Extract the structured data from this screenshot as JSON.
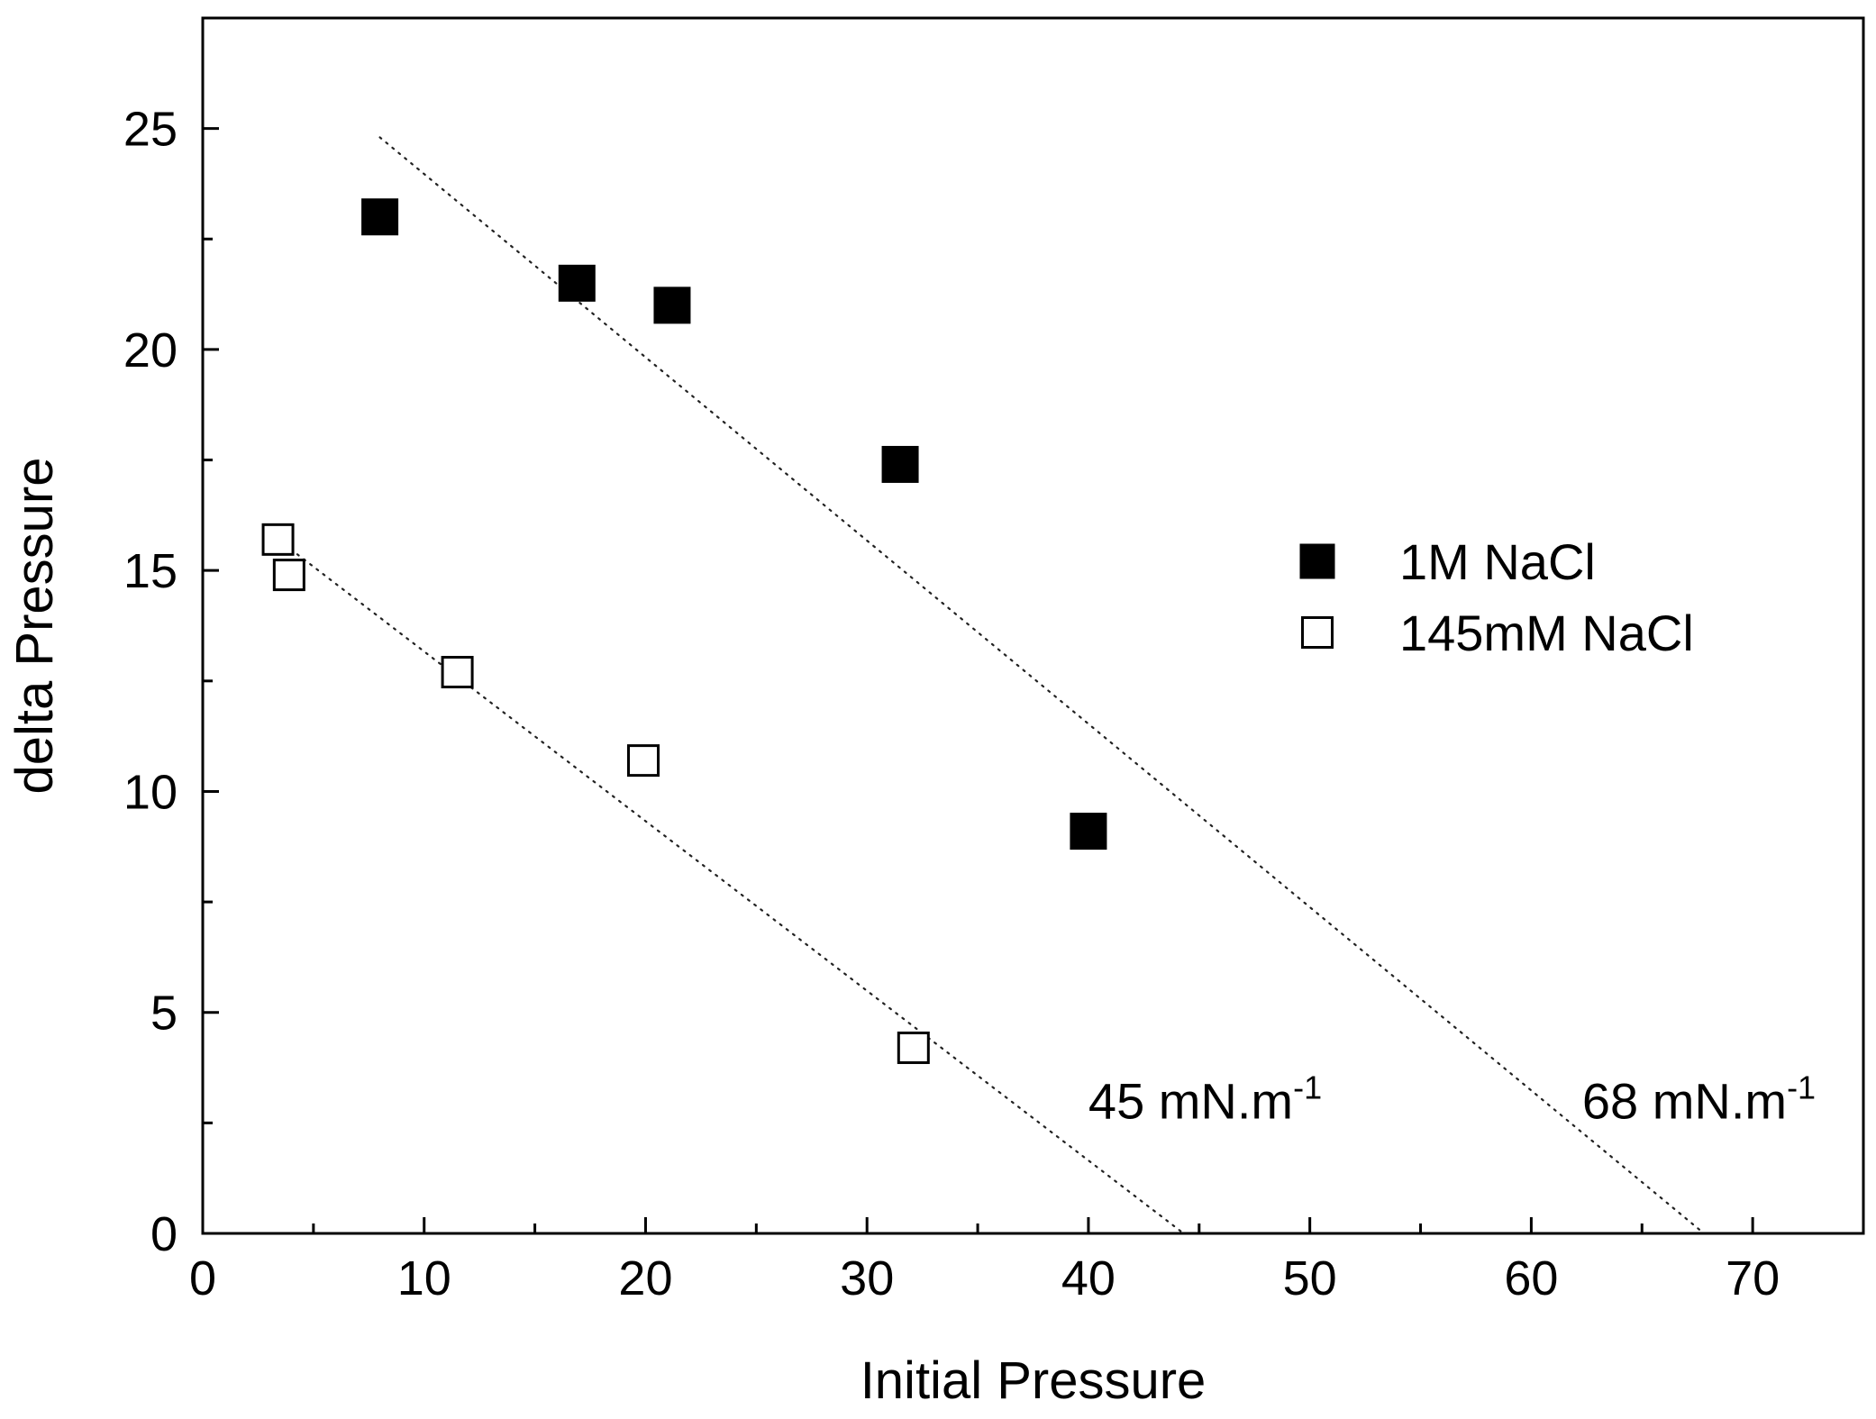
{
  "chart_data": {
    "type": "scatter",
    "title": "",
    "xlabel": "Initial Pressure",
    "ylabel": "delta Pressure",
    "xlim": [
      0,
      75
    ],
    "ylim": [
      0,
      27.5
    ],
    "xticks": [
      0,
      10,
      20,
      30,
      40,
      50,
      60,
      70
    ],
    "xticks_minor": [
      5,
      15,
      25,
      35,
      45,
      55,
      65
    ],
    "yticks": [
      0,
      5,
      10,
      15,
      20,
      25
    ],
    "yticks_minor": [
      2.5,
      7.5,
      12.5,
      17.5,
      22.5
    ],
    "grid": false,
    "legend_position": "center-right",
    "series": [
      {
        "name": "1M NaCl",
        "marker": "filled-square",
        "color": "#000000",
        "x": [
          8.0,
          16.9,
          21.2,
          31.5,
          40.0
        ],
        "y": [
          23.0,
          21.5,
          21.0,
          17.4,
          9.1
        ]
      },
      {
        "name": "145mM NaCl",
        "marker": "open-square",
        "color": "#000000",
        "x": [
          3.4,
          3.9,
          11.5,
          19.9,
          32.1
        ],
        "y": [
          15.7,
          14.9,
          12.7,
          10.7,
          4.2
        ]
      }
    ],
    "fit_lines": [
      {
        "name": "1M NaCl fit",
        "style": "dotted",
        "x": [
          8.0,
          67.8
        ],
        "y": [
          24.8,
          0
        ]
      },
      {
        "name": "145mM NaCl fit",
        "style": "dotted",
        "x": [
          3.4,
          44.3
        ],
        "y": [
          15.7,
          0
        ]
      }
    ],
    "annotations": [
      {
        "text": "45 mN.m",
        "superscript": "-1",
        "x": 40.0,
        "y": 2.6
      },
      {
        "text": "68 mN.m",
        "superscript": "-1",
        "x": 62.3,
        "y": 2.6
      }
    ]
  }
}
